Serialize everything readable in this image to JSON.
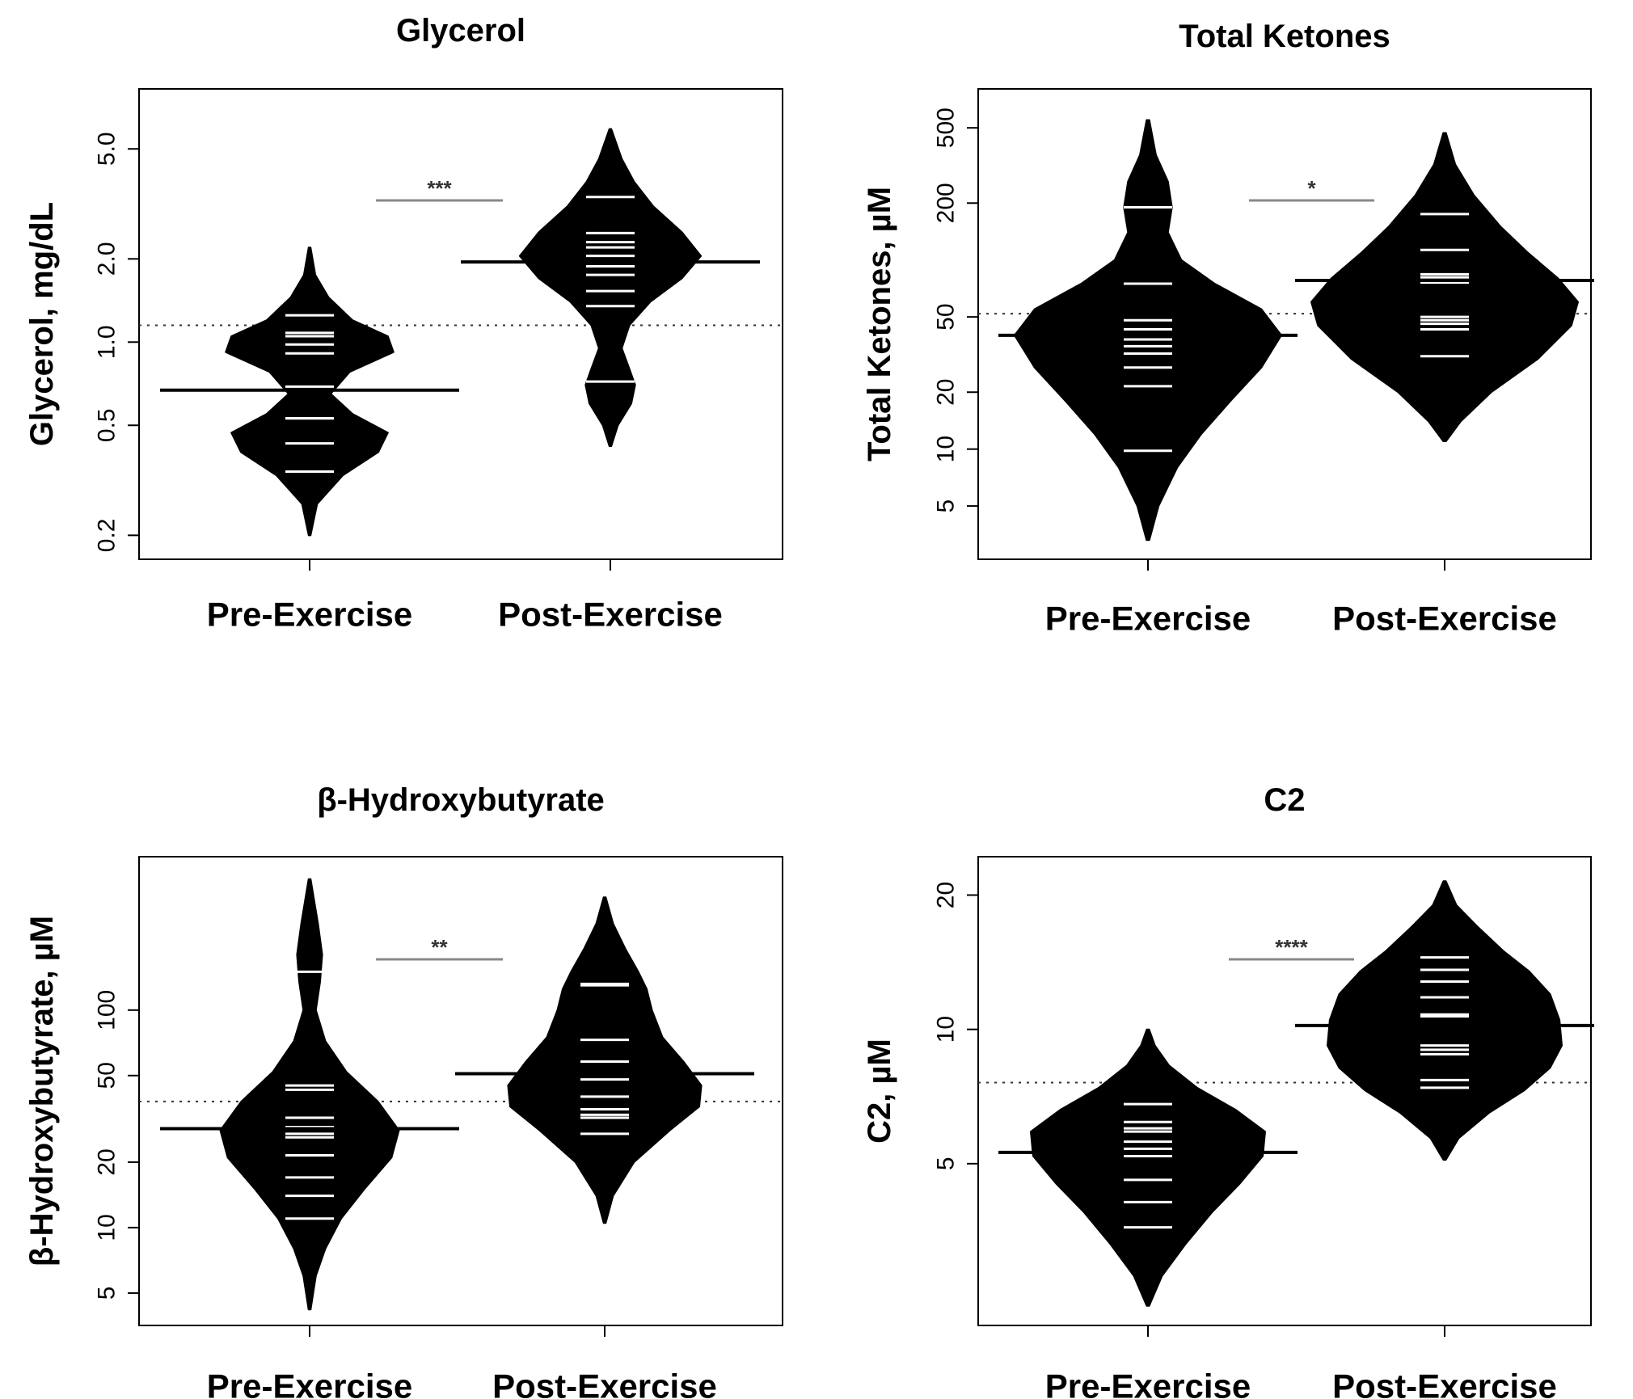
{
  "chart_data": [
    {
      "type": "beanplot",
      "title": "Glycerol",
      "ylabel": "Glycerol, mg/dL",
      "yscale": "log",
      "ylim": [
        0.18,
        7.5
      ],
      "yticks": [
        0.2,
        0.5,
        1.0,
        2.0,
        5.0
      ],
      "ytick_labels": [
        "0.2",
        "0.5",
        "1.0",
        "2.0",
        "5.0"
      ],
      "categories": [
        "Pre-Exercise",
        "Post-Exercise"
      ],
      "overall_mean": 1.15,
      "significance": "***",
      "groups": [
        {
          "name": "Pre-Exercise",
          "mean": 0.67,
          "range": [
            0.2,
            2.2
          ],
          "density": [
            [
              0.2,
              0.01
            ],
            [
              0.26,
              0.08
            ],
            [
              0.33,
              0.35
            ],
            [
              0.4,
              0.72
            ],
            [
              0.47,
              0.82
            ],
            [
              0.55,
              0.45
            ],
            [
              0.65,
              0.22
            ],
            [
              0.78,
              0.42
            ],
            [
              0.92,
              0.88
            ],
            [
              1.05,
              0.82
            ],
            [
              1.2,
              0.45
            ],
            [
              1.45,
              0.2
            ],
            [
              1.75,
              0.06
            ],
            [
              2.2,
              0.01
            ]
          ],
          "points": [
            0.34,
            0.43,
            0.53,
            0.53,
            0.69,
            0.91,
            0.98,
            1.05,
            1.08,
            1.25
          ]
        },
        {
          "name": "Post-Exercise",
          "mean": 1.95,
          "range": [
            0.42,
            5.9
          ],
          "density": [
            [
              0.42,
              0.01
            ],
            [
              0.5,
              0.08
            ],
            [
              0.6,
              0.22
            ],
            [
              0.7,
              0.26
            ],
            [
              0.8,
              0.2
            ],
            [
              0.95,
              0.12
            ],
            [
              1.15,
              0.2
            ],
            [
              1.4,
              0.42
            ],
            [
              1.7,
              0.75
            ],
            [
              2.05,
              0.95
            ],
            [
              2.5,
              0.75
            ],
            [
              3.1,
              0.45
            ],
            [
              3.8,
              0.25
            ],
            [
              4.6,
              0.12
            ],
            [
              5.9,
              0.01
            ]
          ],
          "points": [
            0.72,
            1.35,
            1.53,
            1.75,
            1.88,
            2.05,
            2.2,
            2.3,
            2.48,
            3.35
          ]
        }
      ]
    },
    {
      "type": "beanplot",
      "title": "Total Ketones",
      "ylabel": "Total Ketones, µM",
      "yscale": "log",
      "ylim": [
        3,
        700
      ],
      "yticks": [
        5,
        10,
        20,
        50,
        200,
        500
      ],
      "ytick_labels": [
        "5",
        "10",
        "20",
        "50",
        "200",
        "500"
      ],
      "categories": [
        "Pre-Exercise",
        "Post-Exercise"
      ],
      "overall_mean": 52,
      "significance": "*",
      "groups": [
        {
          "name": "Pre-Exercise",
          "mean": 40,
          "range": [
            3.3,
            550
          ],
          "density": [
            [
              3.3,
              0.01
            ],
            [
              5,
              0.08
            ],
            [
              8,
              0.22
            ],
            [
              12,
              0.4
            ],
            [
              18,
              0.62
            ],
            [
              27,
              0.85
            ],
            [
              40,
              1.0
            ],
            [
              55,
              0.85
            ],
            [
              75,
              0.5
            ],
            [
              100,
              0.25
            ],
            [
              140,
              0.15
            ],
            [
              190,
              0.18
            ],
            [
              260,
              0.15
            ],
            [
              360,
              0.06
            ],
            [
              550,
              0.01
            ]
          ],
          "points": [
            9.8,
            21.5,
            27,
            32,
            35,
            38,
            43,
            48,
            75,
            190
          ]
        },
        {
          "name": "Post-Exercise",
          "mean": 78,
          "range": [
            11,
            470
          ],
          "density": [
            [
              11,
              0.01
            ],
            [
              14,
              0.12
            ],
            [
              20,
              0.35
            ],
            [
              30,
              0.7
            ],
            [
              45,
              0.95
            ],
            [
              60,
              1.0
            ],
            [
              80,
              0.85
            ],
            [
              110,
              0.62
            ],
            [
              150,
              0.42
            ],
            [
              220,
              0.22
            ],
            [
              320,
              0.08
            ],
            [
              470,
              0.01
            ]
          ],
          "points": [
            31,
            43,
            46,
            48,
            50,
            76,
            81,
            84,
            113,
            175
          ]
        }
      ]
    },
    {
      "type": "beanplot",
      "title": "β-Hydroxybutyrate",
      "ylabel": "β-Hydroxybutyrate, µM",
      "yscale": "log",
      "ylim": [
        4,
        450
      ],
      "yticks": [
        5,
        10,
        20,
        50,
        100
      ],
      "ytick_labels": [
        "5",
        "10",
        "20",
        "50",
        "100"
      ],
      "categories": [
        "Pre-Exercise",
        "Post-Exercise"
      ],
      "overall_mean": 38,
      "significance": "**",
      "groups": [
        {
          "name": "Pre-Exercise",
          "mean": 28.5,
          "range": [
            4.2,
            400
          ],
          "density": [
            [
              4.2,
              0.01
            ],
            [
              6,
              0.06
            ],
            [
              8,
              0.15
            ],
            [
              11,
              0.3
            ],
            [
              15,
              0.52
            ],
            [
              21,
              0.78
            ],
            [
              28,
              0.85
            ],
            [
              38,
              0.65
            ],
            [
              52,
              0.35
            ],
            [
              72,
              0.15
            ],
            [
              100,
              0.06
            ],
            [
              135,
              0.1
            ],
            [
              180,
              0.12
            ],
            [
              250,
              0.08
            ],
            [
              400,
              0.01
            ]
          ],
          "points": [
            11,
            14,
            17,
            21.5,
            26,
            27,
            29,
            32,
            43,
            45,
            150
          ]
        },
        {
          "name": "Post-Exercise",
          "mean": 51,
          "range": [
            10.5,
            330
          ],
          "density": [
            [
              10.5,
              0.01
            ],
            [
              14,
              0.08
            ],
            [
              20,
              0.28
            ],
            [
              28,
              0.62
            ],
            [
              36,
              0.9
            ],
            [
              45,
              0.92
            ],
            [
              58,
              0.75
            ],
            [
              75,
              0.55
            ],
            [
              100,
              0.45
            ],
            [
              125,
              0.4
            ],
            [
              150,
              0.32
            ],
            [
              190,
              0.2
            ],
            [
              250,
              0.08
            ],
            [
              330,
              0.01
            ]
          ],
          "points": [
            27,
            32,
            33,
            35,
            40,
            48,
            58,
            73,
            130,
            132
          ]
        }
      ]
    },
    {
      "type": "beanplot",
      "title": "C2",
      "ylabel": "C2, µM",
      "yscale": "log",
      "ylim": [
        2.3,
        23
      ],
      "yticks": [
        5,
        10,
        20
      ],
      "ytick_labels": [
        "5",
        "10",
        "20"
      ],
      "categories": [
        "Pre-Exercise",
        "Post-Exercise"
      ],
      "overall_mean": 7.6,
      "significance": "****",
      "groups": [
        {
          "name": "Pre-Exercise",
          "mean": 5.3,
          "range": [
            2.4,
            10
          ],
          "density": [
            [
              2.4,
              0.01
            ],
            [
              2.8,
              0.12
            ],
            [
              3.3,
              0.32
            ],
            [
              3.9,
              0.55
            ],
            [
              4.5,
              0.78
            ],
            [
              5.2,
              0.98
            ],
            [
              5.9,
              1.0
            ],
            [
              6.6,
              0.75
            ],
            [
              7.4,
              0.42
            ],
            [
              8.3,
              0.18
            ],
            [
              9.2,
              0.06
            ],
            [
              10,
              0.01
            ]
          ],
          "points": [
            3.6,
            4.1,
            4.6,
            5.2,
            5.4,
            5.6,
            5.9,
            6.0,
            6.2,
            6.8
          ]
        },
        {
          "name": "Post-Exercise",
          "mean": 10.2,
          "range": [
            5.1,
            21.5
          ],
          "density": [
            [
              5.1,
              0.01
            ],
            [
              5.7,
              0.12
            ],
            [
              6.5,
              0.38
            ],
            [
              7.3,
              0.68
            ],
            [
              8.2,
              0.9
            ],
            [
              9.2,
              1.0
            ],
            [
              10.5,
              0.98
            ],
            [
              12,
              0.9
            ],
            [
              13.5,
              0.72
            ],
            [
              15,
              0.5
            ],
            [
              17,
              0.28
            ],
            [
              19,
              0.1
            ],
            [
              21.5,
              0.01
            ]
          ],
          "points": [
            7.4,
            7.7,
            8.8,
            9.0,
            9.2,
            10.7,
            10.8,
            11.8,
            12.8,
            13.6,
            14.5
          ]
        }
      ]
    }
  ]
}
